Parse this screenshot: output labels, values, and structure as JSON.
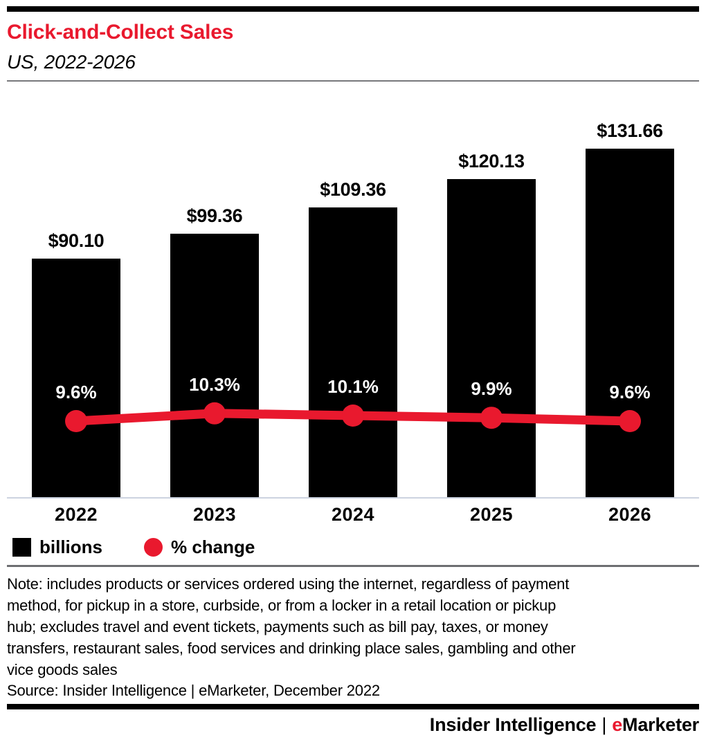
{
  "header": {
    "title": "Click-and-Collect Sales",
    "subtitle": "US, 2022-2026"
  },
  "chart_data": {
    "type": "bar",
    "combo": "bar+line",
    "categories": [
      "2022",
      "2023",
      "2024",
      "2025",
      "2026"
    ],
    "series": [
      {
        "name": "billions",
        "type": "bar",
        "values": [
          90.1,
          99.36,
          109.36,
          120.13,
          131.66
        ],
        "labels": [
          "$90.10",
          "$99.36",
          "$109.36",
          "$120.13",
          "$131.66"
        ],
        "color": "#000000"
      },
      {
        "name": "% change",
        "type": "line",
        "values": [
          9.6,
          10.3,
          10.1,
          9.9,
          9.6
        ],
        "labels": [
          "9.6%",
          "10.3%",
          "10.1%",
          "9.9%",
          "9.6%"
        ],
        "color": "#e9192e"
      }
    ],
    "legend": [
      {
        "label": "billions",
        "swatch": "square",
        "color": "#000000"
      },
      {
        "label": "% change",
        "swatch": "circle",
        "color": "#e9192e"
      }
    ],
    "legend_position": "bottom-left",
    "grid": false,
    "value_axis_ticks": "none",
    "bar_value_unit": "US$ billions"
  },
  "note_lines": [
    "Note: includes products or services ordered using the internet, regardless of payment",
    "method, for pickup in a store, curbside, or from a locker in a retail location or pickup",
    "hub; excludes travel and event tickets, payments such as bill pay, taxes, or money",
    "transfers, restaurant sales, food services and drinking place sales, gambling and other",
    "vice goods sales"
  ],
  "source": "Source: Insider Intelligence | eMarketer, December 2022",
  "footer": {
    "brand_left": "Insider Intelligence",
    "separator": "|",
    "brand_e": "e",
    "brand_rest": "Marketer"
  },
  "colors": {
    "accent_red": "#e9192e",
    "bar_black": "#000000",
    "axis_line": "#ccd3e0",
    "header_rule": "#77787b",
    "legend_rule": "#6d6e71"
  }
}
